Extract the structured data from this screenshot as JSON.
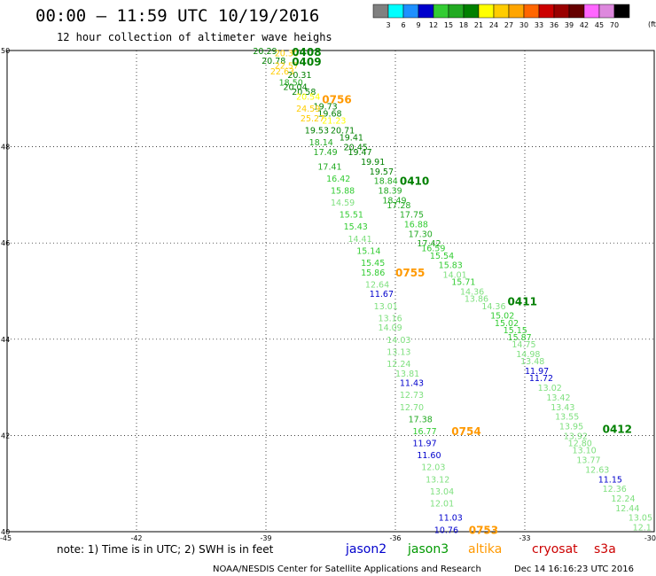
{
  "header": {
    "title": "00:00 – 11:59 UTC 10/19/2016",
    "subtitle": "12 hour collection of altimeter wave heighs"
  },
  "colorbar": {
    "unit": "(ft)",
    "ticks": [
      "3",
      "6",
      "9",
      "12",
      "15",
      "18",
      "21",
      "24",
      "27",
      "30",
      "33",
      "36",
      "39",
      "42",
      "45",
      "70"
    ],
    "colors": [
      "#808080",
      "#00ffff",
      "#1e90ff",
      "#0000cc",
      "#33cc33",
      "#22aa22",
      "#008000",
      "#ffff00",
      "#ffcc00",
      "#ffa500",
      "#ff6600",
      "#cc0000",
      "#990000",
      "#660000",
      "#ff66ff",
      "#dd88dd",
      "#000000"
    ]
  },
  "footer": {
    "note": "note: 1) Time is in UTC; 2) SWH is in feet",
    "satellites": [
      {
        "name": "jason2",
        "color": "#0000cc"
      },
      {
        "name": "jason3",
        "color": "#009900"
      },
      {
        "name": "altika",
        "color": "#ff9900"
      },
      {
        "name": "cryosat",
        "color": "#cc0000"
      },
      {
        "name": "s3a",
        "color": "#cc0000"
      }
    ],
    "credit": "NOAA/NESDIS Center for Satellite Applications and Research",
    "timestamp": "Dec 14 16:16:23 UTC 2016"
  },
  "chart_data": {
    "type": "scatter",
    "title": "00:00 – 11:59 UTC 10/19/2016",
    "subtitle": "12 hour collection of altimeter wave heighs",
    "xlabel": "",
    "ylabel": "",
    "xlim": [
      -45,
      -30
    ],
    "ylim": [
      40,
      50
    ],
    "grid": true,
    "x_ticks": [
      "-45",
      "-42",
      "-39",
      "-36",
      "-33",
      "-30"
    ],
    "y_ticks": [
      "40",
      "42",
      "44",
      "46",
      "48",
      "50"
    ],
    "y_tick_values": [
      40,
      42,
      44,
      46,
      48,
      50
    ],
    "points": [
      {
        "x": -39.3,
        "y": 50.0,
        "label": "20.29",
        "color": "#008000"
      },
      {
        "x": -38.8,
        "y": 49.95,
        "label": "20.30",
        "color": "#ffcc00"
      },
      {
        "x": -39.1,
        "y": 49.8,
        "label": "20.78",
        "color": "#008000"
      },
      {
        "x": -38.8,
        "y": 49.7,
        "label": "22.57",
        "color": "#ffcc00"
      },
      {
        "x": -38.9,
        "y": 49.58,
        "label": "22.63",
        "color": "#ffcc00"
      },
      {
        "x": -38.5,
        "y": 49.5,
        "label": "20.31",
        "color": "#008000"
      },
      {
        "x": -38.7,
        "y": 49.35,
        "label": "18.50",
        "color": "#22aa22"
      },
      {
        "x": -38.6,
        "y": 49.25,
        "label": "20.04",
        "color": "#008000"
      },
      {
        "x": -38.4,
        "y": 49.15,
        "label": "20.58",
        "color": "#008000"
      },
      {
        "x": -38.3,
        "y": 49.05,
        "label": "20.54",
        "color": "#ffff00"
      },
      {
        "x": -37.9,
        "y": 48.85,
        "label": "19.73",
        "color": "#008000"
      },
      {
        "x": -38.3,
        "y": 48.8,
        "label": "24.59",
        "color": "#ffcc00"
      },
      {
        "x": -37.8,
        "y": 48.7,
        "label": "19.68",
        "color": "#008000"
      },
      {
        "x": -38.2,
        "y": 48.6,
        "label": "25.27",
        "color": "#ffcc00"
      },
      {
        "x": -37.7,
        "y": 48.55,
        "label": "21.23",
        "color": "#ffff00"
      },
      {
        "x": -38.1,
        "y": 48.35,
        "label": "19.53",
        "color": "#008000"
      },
      {
        "x": -37.5,
        "y": 48.35,
        "label": "20.71",
        "color": "#008000"
      },
      {
        "x": -37.3,
        "y": 48.2,
        "label": "19.41",
        "color": "#008000"
      },
      {
        "x": -38.0,
        "y": 48.1,
        "label": "18.14",
        "color": "#22aa22"
      },
      {
        "x": -37.2,
        "y": 48.0,
        "label": "20.45",
        "color": "#008000"
      },
      {
        "x": -37.9,
        "y": 47.9,
        "label": "17.49",
        "color": "#22aa22"
      },
      {
        "x": -37.1,
        "y": 47.9,
        "label": "19.47",
        "color": "#008000"
      },
      {
        "x": -36.8,
        "y": 47.7,
        "label": "19.91",
        "color": "#008000"
      },
      {
        "x": -37.8,
        "y": 47.6,
        "label": "17.41",
        "color": "#22aa22"
      },
      {
        "x": -36.6,
        "y": 47.5,
        "label": "19.57",
        "color": "#008000"
      },
      {
        "x": -37.6,
        "y": 47.35,
        "label": "16.42",
        "color": "#33cc33"
      },
      {
        "x": -36.5,
        "y": 47.3,
        "label": "18.84",
        "color": "#22aa22"
      },
      {
        "x": -36.4,
        "y": 47.1,
        "label": "18.39",
        "color": "#22aa22"
      },
      {
        "x": -37.5,
        "y": 47.1,
        "label": "15.88",
        "color": "#33cc33"
      },
      {
        "x": -36.3,
        "y": 46.9,
        "label": "18.49",
        "color": "#22aa22"
      },
      {
        "x": -37.5,
        "y": 46.85,
        "label": "14.59",
        "color": "#7fe07f"
      },
      {
        "x": -36.2,
        "y": 46.8,
        "label": "17.28",
        "color": "#22aa22"
      },
      {
        "x": -35.9,
        "y": 46.6,
        "label": "17.75",
        "color": "#22aa22"
      },
      {
        "x": -37.3,
        "y": 46.6,
        "label": "15.51",
        "color": "#33cc33"
      },
      {
        "x": -35.8,
        "y": 46.4,
        "label": "16.88",
        "color": "#33cc33"
      },
      {
        "x": -37.2,
        "y": 46.35,
        "label": "15.43",
        "color": "#33cc33"
      },
      {
        "x": -35.7,
        "y": 46.2,
        "label": "17.30",
        "color": "#22aa22"
      },
      {
        "x": -37.1,
        "y": 46.1,
        "label": "14.41",
        "color": "#7fe07f"
      },
      {
        "x": -35.5,
        "y": 46.0,
        "label": "17.42",
        "color": "#22aa22"
      },
      {
        "x": -35.4,
        "y": 45.9,
        "label": "16.59",
        "color": "#33cc33"
      },
      {
        "x": -36.9,
        "y": 45.85,
        "label": "15.14",
        "color": "#33cc33"
      },
      {
        "x": -35.2,
        "y": 45.75,
        "label": "15.54",
        "color": "#33cc33"
      },
      {
        "x": -36.8,
        "y": 45.6,
        "label": "15.45",
        "color": "#33cc33"
      },
      {
        "x": -35.0,
        "y": 45.55,
        "label": "15.83",
        "color": "#33cc33"
      },
      {
        "x": -36.8,
        "y": 45.4,
        "label": "15.86",
        "color": "#33cc33"
      },
      {
        "x": -34.9,
        "y": 45.35,
        "label": "14.01",
        "color": "#7fe07f"
      },
      {
        "x": -34.7,
        "y": 45.2,
        "label": "15.71",
        "color": "#33cc33"
      },
      {
        "x": -36.7,
        "y": 45.15,
        "label": "12.64",
        "color": "#7fe07f"
      },
      {
        "x": -34.5,
        "y": 45.0,
        "label": "14.36",
        "color": "#7fe07f"
      },
      {
        "x": -36.6,
        "y": 44.95,
        "label": "11.67",
        "color": "#0000cc"
      },
      {
        "x": -34.4,
        "y": 44.85,
        "label": "13.86",
        "color": "#7fe07f"
      },
      {
        "x": -36.5,
        "y": 44.7,
        "label": "13.01",
        "color": "#7fe07f"
      },
      {
        "x": -34.0,
        "y": 44.7,
        "label": "14.36",
        "color": "#7fe07f"
      },
      {
        "x": -33.8,
        "y": 44.5,
        "label": "15.02",
        "color": "#33cc33"
      },
      {
        "x": -36.4,
        "y": 44.45,
        "label": "13.16",
        "color": "#7fe07f"
      },
      {
        "x": -33.7,
        "y": 44.35,
        "label": "15.02",
        "color": "#33cc33"
      },
      {
        "x": -36.4,
        "y": 44.25,
        "label": "14.09",
        "color": "#7fe07f"
      },
      {
        "x": -33.5,
        "y": 44.2,
        "label": "15.15",
        "color": "#33cc33"
      },
      {
        "x": -33.4,
        "y": 44.05,
        "label": "15.87",
        "color": "#33cc33"
      },
      {
        "x": -36.2,
        "y": 44.0,
        "label": "14.03",
        "color": "#7fe07f"
      },
      {
        "x": -33.3,
        "y": 43.9,
        "label": "14.75",
        "color": "#7fe07f"
      },
      {
        "x": -36.2,
        "y": 43.75,
        "label": "13.13",
        "color": "#7fe07f"
      },
      {
        "x": -33.2,
        "y": 43.7,
        "label": "14.98",
        "color": "#7fe07f"
      },
      {
        "x": -33.1,
        "y": 43.55,
        "label": "13.48",
        "color": "#7fe07f"
      },
      {
        "x": -36.2,
        "y": 43.5,
        "label": "12.24",
        "color": "#7fe07f"
      },
      {
        "x": -33.0,
        "y": 43.35,
        "label": "11.97",
        "color": "#0000cc"
      },
      {
        "x": -36.0,
        "y": 43.3,
        "label": "13.81",
        "color": "#7fe07f"
      },
      {
        "x": -32.9,
        "y": 43.2,
        "label": "11.72",
        "color": "#0000cc"
      },
      {
        "x": -35.9,
        "y": 43.1,
        "label": "11.43",
        "color": "#0000cc"
      },
      {
        "x": -32.7,
        "y": 43.0,
        "label": "13.02",
        "color": "#7fe07f"
      },
      {
        "x": -35.9,
        "y": 42.85,
        "label": "12.73",
        "color": "#7fe07f"
      },
      {
        "x": -32.5,
        "y": 42.8,
        "label": "13.42",
        "color": "#7fe07f"
      },
      {
        "x": -35.9,
        "y": 42.6,
        "label": "12.70",
        "color": "#7fe07f"
      },
      {
        "x": -32.4,
        "y": 42.6,
        "label": "13.43",
        "color": "#7fe07f"
      },
      {
        "x": -32.3,
        "y": 42.4,
        "label": "13.55",
        "color": "#7fe07f"
      },
      {
        "x": -35.7,
        "y": 42.35,
        "label": "17.38",
        "color": "#22aa22"
      },
      {
        "x": -32.2,
        "y": 42.2,
        "label": "13.95",
        "color": "#7fe07f"
      },
      {
        "x": -35.6,
        "y": 42.1,
        "label": "16.77",
        "color": "#33cc33"
      },
      {
        "x": -32.1,
        "y": 42.0,
        "label": "13.92",
        "color": "#7fe07f"
      },
      {
        "x": -32.0,
        "y": 41.85,
        "label": "12.80",
        "color": "#7fe07f"
      },
      {
        "x": -35.6,
        "y": 41.85,
        "label": "11.97",
        "color": "#0000cc"
      },
      {
        "x": -31.9,
        "y": 41.7,
        "label": "13.10",
        "color": "#7fe07f"
      },
      {
        "x": -35.5,
        "y": 41.6,
        "label": "11.60",
        "color": "#0000cc"
      },
      {
        "x": -31.8,
        "y": 41.5,
        "label": "13.77",
        "color": "#7fe07f"
      },
      {
        "x": -35.4,
        "y": 41.35,
        "label": "12.03",
        "color": "#7fe07f"
      },
      {
        "x": -31.6,
        "y": 41.3,
        "label": "12.63",
        "color": "#7fe07f"
      },
      {
        "x": -35.3,
        "y": 41.1,
        "label": "13.12",
        "color": "#7fe07f"
      },
      {
        "x": -31.3,
        "y": 41.1,
        "label": "11.15",
        "color": "#0000cc"
      },
      {
        "x": -31.2,
        "y": 40.9,
        "label": "12.36",
        "color": "#7fe07f"
      },
      {
        "x": -35.2,
        "y": 40.85,
        "label": "13.04",
        "color": "#7fe07f"
      },
      {
        "x": -31.0,
        "y": 40.7,
        "label": "12.24",
        "color": "#7fe07f"
      },
      {
        "x": -35.2,
        "y": 40.6,
        "label": "12.01",
        "color": "#7fe07f"
      },
      {
        "x": -30.9,
        "y": 40.5,
        "label": "12.44",
        "color": "#7fe07f"
      },
      {
        "x": -30.6,
        "y": 40.3,
        "label": "13.05",
        "color": "#7fe07f"
      },
      {
        "x": -35.0,
        "y": 40.3,
        "label": "11.03",
        "color": "#0000cc"
      },
      {
        "x": -35.1,
        "y": 40.05,
        "label": "10.76",
        "color": "#0000cc"
      },
      {
        "x": -30.5,
        "y": 40.1,
        "label": "12.1",
        "color": "#7fe07f"
      }
    ],
    "passes": [
      {
        "x": -38.4,
        "y": 49.98,
        "label": "0408",
        "color": "#008000"
      },
      {
        "x": -38.4,
        "y": 49.78,
        "label": "0409",
        "color": "#008000"
      },
      {
        "x": -37.7,
        "y": 49.0,
        "label": "0756",
        "color": "#ff9900"
      },
      {
        "x": -35.9,
        "y": 47.3,
        "label": "0410",
        "color": "#008000"
      },
      {
        "x": -36.0,
        "y": 45.4,
        "label": "0755",
        "color": "#ff9900"
      },
      {
        "x": -33.4,
        "y": 44.8,
        "label": "0411",
        "color": "#008000"
      },
      {
        "x": -34.7,
        "y": 42.1,
        "label": "0754",
        "color": "#ff9900"
      },
      {
        "x": -31.2,
        "y": 42.15,
        "label": "0412",
        "color": "#008000"
      },
      {
        "x": -34.3,
        "y": 40.05,
        "label": "0753",
        "color": "#ff9900"
      }
    ]
  }
}
